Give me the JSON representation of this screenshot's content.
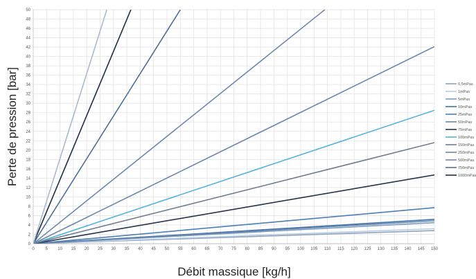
{
  "chart_data": {
    "type": "line",
    "title": "",
    "xlabel": "Débit massique [kg/h]",
    "ylabel": "Perte de pression [bar]",
    "xlim": [
      0,
      150
    ],
    "ylim": [
      0,
      50
    ],
    "xticks": [
      0,
      5,
      10,
      15,
      20,
      25,
      30,
      35,
      40,
      45,
      50,
      55,
      60,
      65,
      70,
      75,
      80,
      85,
      90,
      95,
      100,
      105,
      110,
      115,
      120,
      125,
      130,
      135,
      140,
      145,
      150
    ],
    "yticks": [
      0,
      2,
      4,
      6,
      8,
      10,
      12,
      14,
      16,
      18,
      20,
      22,
      24,
      26,
      28,
      30,
      32,
      34,
      36,
      38,
      40,
      42,
      44,
      46,
      48,
      50
    ],
    "grid": true,
    "legend_position": "right",
    "series": [
      {
        "name": "0,5mPas",
        "color": "#8fa3bd",
        "x": [
          0,
          150
        ],
        "y": [
          0,
          2.8
        ]
      },
      {
        "name": "1mPas",
        "color": "#b5cde3",
        "x": [
          0,
          150
        ],
        "y": [
          0,
          3.2
        ]
      },
      {
        "name": "5mPas",
        "color": "#7a9cc4",
        "x": [
          0,
          150
        ],
        "y": [
          0,
          4.5
        ]
      },
      {
        "name": "10mPas",
        "color": "#3d72ae",
        "x": [
          0,
          150
        ],
        "y": [
          0,
          5.2
        ]
      },
      {
        "name": "25mPas",
        "color": "#4a7fb8",
        "x": [
          0,
          150
        ],
        "y": [
          0,
          7.7
        ]
      },
      {
        "name": "50mPas",
        "color": "#6a86a8",
        "x": [
          0,
          150
        ],
        "y": [
          0,
          4.9
        ]
      },
      {
        "name": "75mPas",
        "color": "#25324a",
        "x": [
          0,
          150
        ],
        "y": [
          0,
          14.7
        ]
      },
      {
        "name": "100mPas",
        "color": "#4fb4df",
        "x": [
          0,
          150
        ],
        "y": [
          0,
          28.5
        ]
      },
      {
        "name": "150mPas",
        "color": "#707c90",
        "x": [
          0,
          150
        ],
        "y": [
          0,
          21.6
        ]
      },
      {
        "name": "250mPas",
        "color": "#6d86ab",
        "x": [
          0,
          150
        ],
        "y": [
          0,
          42.1
        ]
      },
      {
        "name": "500mPas",
        "color": "#6d88ad",
        "x": [
          0,
          109
        ],
        "y": [
          0,
          50
        ]
      },
      {
        "name": "750mPas",
        "color": "#4d6f98",
        "x": [
          0,
          55
        ],
        "y": [
          0,
          50
        ]
      },
      {
        "name": "1000mPas",
        "color": "#1f2c45",
        "x": [
          0,
          36.5
        ],
        "y": [
          0,
          50
        ]
      },
      {
        "name": "",
        "color": "#a9b9ce",
        "x": [
          0,
          27.5
        ],
        "y": [
          0,
          50
        ]
      }
    ]
  }
}
